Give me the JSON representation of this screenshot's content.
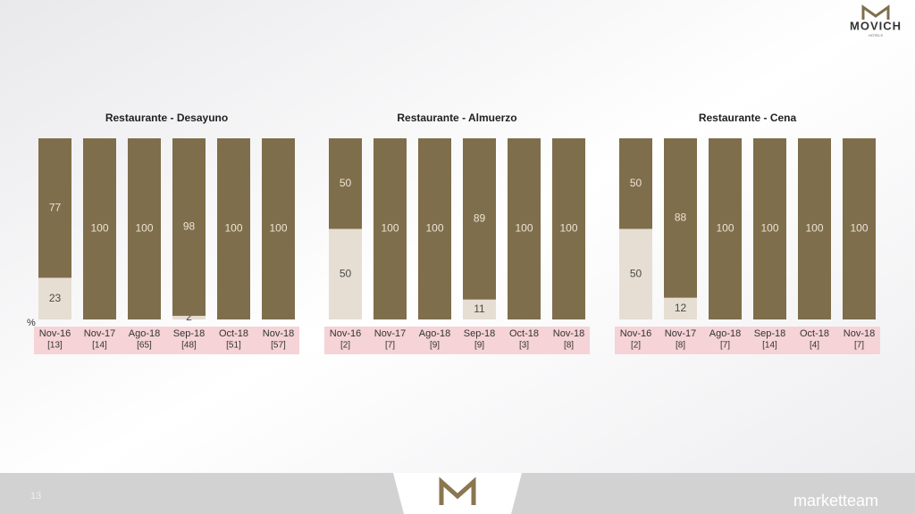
{
  "brand": {
    "name": "MOVICH",
    "tagline": "HOTELS"
  },
  "unit_label": "%",
  "footer": {
    "page_number": "13",
    "agency": "marketteam"
  },
  "chart_data": [
    {
      "type": "stacked-bar",
      "title": "Restaurante - Desayuno",
      "categories": [
        "Nov-16",
        "Nov-17",
        "Ago-18",
        "Sep-18",
        "Oct-18",
        "Nov-18"
      ],
      "n_labels": [
        "[13]",
        "[14]",
        "[65]",
        "[48]",
        "[51]",
        "[57]"
      ],
      "ylim": [
        0,
        100
      ],
      "series": [
        {
          "color": "#e6ded2",
          "label_color": "#4a4a4a",
          "values": [
            23,
            null,
            null,
            2,
            null,
            null
          ]
        },
        {
          "color": "#7f6e4b",
          "label_color": "#ece4d6",
          "values": [
            77,
            100,
            100,
            98,
            100,
            100
          ]
        }
      ]
    },
    {
      "type": "stacked-bar",
      "title": "Restaurante - Almuerzo",
      "categories": [
        "Nov-16",
        "Nov-17",
        "Ago-18",
        "Sep-18",
        "Oct-18",
        "Nov-18"
      ],
      "n_labels": [
        "[2]",
        "[7]",
        "[9]",
        "[9]",
        "[3]",
        "[8]"
      ],
      "ylim": [
        0,
        100
      ],
      "series": [
        {
          "color": "#e6ded2",
          "label_color": "#4a4a4a",
          "values": [
            50,
            null,
            null,
            11,
            null,
            null
          ]
        },
        {
          "color": "#7f6e4b",
          "label_color": "#ece4d6",
          "values": [
            50,
            100,
            100,
            89,
            100,
            100
          ]
        }
      ]
    },
    {
      "type": "stacked-bar",
      "title": "Restaurante - Cena",
      "categories": [
        "Nov-16",
        "Nov-17",
        "Ago-18",
        "Sep-18",
        "Oct-18",
        "Nov-18"
      ],
      "n_labels": [
        "[2]",
        "[8]",
        "[7]",
        "[14]",
        "[4]",
        "[7]"
      ],
      "ylim": [
        0,
        100
      ],
      "series": [
        {
          "color": "#e6ded2",
          "label_color": "#4a4a4a",
          "values": [
            50,
            12,
            null,
            null,
            null,
            null
          ]
        },
        {
          "color": "#7f6e4b",
          "label_color": "#ece4d6",
          "values": [
            50,
            88,
            100,
            100,
            100,
            100
          ]
        }
      ]
    }
  ]
}
